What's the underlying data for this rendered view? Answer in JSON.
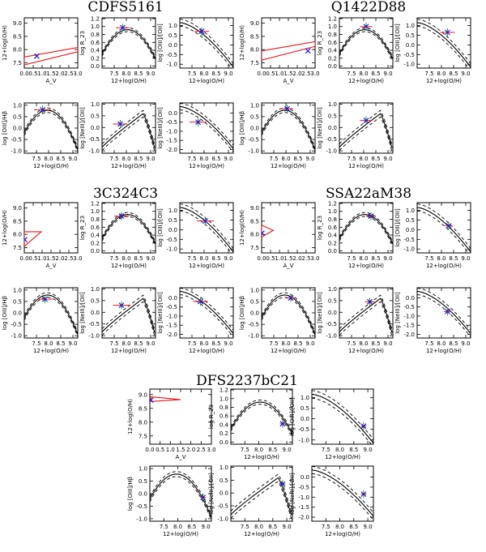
{
  "figure": {
    "background": "#ffffff"
  },
  "colors": {
    "model": "#000000",
    "contour": "#e8141c",
    "observed": "#1a1ad6",
    "error_green": "#2aa12a",
    "error_red": "#e8141c"
  },
  "axis_labels": {
    "x_oh": "12+log(O/H)",
    "x_av": "A_V",
    "y_oh": "12+log(O/H)",
    "y_r23": "log R_23",
    "y_o3o2": "log [OIII]/[OII]",
    "y_o3hb": "log [OIII]/Hβ",
    "y_ne3o2": "log [NeIII]/[OII]"
  },
  "chart_data": [
    {
      "type": "line",
      "galaxy": "CDFS5161",
      "panels": {
        "av": {
          "xlim": [
            0,
            3.0
          ],
          "ylim": [
            7.3,
            9.2
          ],
          "point": {
            "x": 0.7,
            "y": 7.75
          },
          "contour": [
            [
              0.0,
              7.72
            ],
            [
              3.0,
              8.08
            ],
            [
              3.0,
              7.92
            ],
            [
              0.0,
              7.42
            ]
          ]
        },
        "r23": {
          "xlim": [
            7.0,
            9.2
          ],
          "ylim": [
            -0.05,
            1.22
          ],
          "point": {
            "x": 7.85,
            "y": 0.97
          },
          "xerr": 0.28
        },
        "o3o2": {
          "xlim": [
            7.0,
            9.2
          ],
          "ylim": [
            -1.2,
            1.4
          ],
          "point": {
            "x": 7.9,
            "y": 0.7
          },
          "xerr": 0.3
        },
        "o3hb": {
          "xlim": [
            7.0,
            9.2
          ],
          "ylim": [
            -1.1,
            1.1
          ],
          "point": {
            "x": 7.75,
            "y": 0.8
          },
          "xerr": 0.35
        },
        "ne3o2": {
          "xlim": [
            7.0,
            9.2
          ],
          "ylim": [
            -1.1,
            1.05
          ],
          "point": {
            "x": 7.75,
            "y": 0.15
          },
          "xerr": 0.3
        },
        "ne3o2b": {
          "xlim": [
            7.0,
            9.2
          ],
          "ylim": [
            -2.2,
            0.55
          ],
          "point": {
            "x": 7.75,
            "y": -0.5
          },
          "xerr": 0.35
        }
      }
    },
    {
      "type": "line",
      "galaxy": "Q1422D88",
      "panels": {
        "av": {
          "xlim": [
            0,
            3.0
          ],
          "ylim": [
            7.3,
            9.2
          ],
          "point": {
            "x": 2.6,
            "y": 7.95
          },
          "contour": [
            [
              0.0,
              7.95
            ],
            [
              3.0,
              8.3
            ],
            [
              3.0,
              8.12
            ],
            [
              0.0,
              7.6
            ]
          ]
        },
        "r23": {
          "xlim": [
            7.0,
            9.2
          ],
          "ylim": [
            -0.05,
            1.22
          ],
          "point": {
            "x": 8.1,
            "y": 1.0
          },
          "xerr": 0.25
        },
        "o3o2": {
          "xlim": [
            7.0,
            9.2
          ],
          "ylim": [
            -1.2,
            1.4
          ],
          "point": {
            "x": 8.25,
            "y": 0.65
          },
          "xerr": 0.3
        },
        "o3hb": {
          "xlim": [
            7.0,
            9.2
          ],
          "ylim": [
            -1.1,
            1.1
          ],
          "point": {
            "x": 8.05,
            "y": 0.85
          },
          "xerr": 0.25
        },
        "ne3o2": {
          "xlim": [
            7.0,
            9.2
          ],
          "ylim": [
            -1.1,
            1.05
          ],
          "point": {
            "x": 8.1,
            "y": 0.3
          },
          "xerr": 0.25
        }
      }
    },
    {
      "type": "line",
      "galaxy": "3C324C3",
      "panels": {
        "av": {
          "xlim": [
            0,
            3.0
          ],
          "ylim": [
            7.3,
            9.2
          ],
          "point": {
            "x": 0.02,
            "y": 7.8
          },
          "contour": [
            [
              0.0,
              8.1
            ],
            [
              0.95,
              8.1
            ],
            [
              0.0,
              7.55
            ]
          ]
        },
        "r23": {
          "xlim": [
            7.0,
            9.2
          ],
          "ylim": [
            -0.05,
            1.22
          ],
          "point": {
            "x": 7.8,
            "y": 0.88
          },
          "xerr": 0.3
        },
        "o3o2": {
          "xlim": [
            7.0,
            9.2
          ],
          "ylim": [
            -1.2,
            1.4
          ],
          "point": {
            "x": 8.05,
            "y": 0.45
          },
          "xerr": 0.35
        },
        "o3hb": {
          "xlim": [
            7.0,
            9.2
          ],
          "ylim": [
            -1.1,
            1.1
          ],
          "point": {
            "x": 7.85,
            "y": 0.6
          },
          "xerr": 0.3
        },
        "ne3o2": {
          "xlim": [
            7.0,
            9.2
          ],
          "ylim": [
            -1.1,
            1.05
          ],
          "point": {
            "x": 7.8,
            "y": 0.3
          },
          "xerr": 0.35
        },
        "ne3o2b": {
          "xlim": [
            7.0,
            9.2
          ],
          "ylim": [
            -2.2,
            0.55
          ],
          "point": {
            "x": 7.85,
            "y": -0.2
          },
          "xerr": 0.3
        }
      }
    },
    {
      "type": "line",
      "galaxy": "SSA22aM38",
      "panels": {
        "av": {
          "xlim": [
            0,
            3.0
          ],
          "ylim": [
            7.3,
            9.2
          ],
          "point": {
            "x": 0.02,
            "y": 8.05
          },
          "contour": [
            [
              0.0,
              8.35
            ],
            [
              0.65,
              8.15
            ],
            [
              0.0,
              7.9
            ]
          ]
        },
        "r23": {
          "xlim": [
            7.0,
            9.2
          ],
          "ylim": [
            -0.05,
            1.22
          ],
          "point": {
            "x": 8.3,
            "y": 0.88
          },
          "xerr": 0.2
        },
        "o3o2": {
          "xlim": [
            7.0,
            9.2
          ],
          "ylim": [
            -1.2,
            1.4
          ],
          "point": {
            "x": 8.3,
            "y": 0.2
          },
          "xerr": 0.15
        },
        "o3hb": {
          "xlim": [
            7.0,
            9.2
          ],
          "ylim": [
            -1.1,
            1.1
          ],
          "point": {
            "x": 8.2,
            "y": 0.65
          },
          "xerr": 0.2
        },
        "ne3o2": {
          "xlim": [
            7.0,
            9.2
          ],
          "ylim": [
            -1.1,
            1.05
          ],
          "point": {
            "x": 8.25,
            "y": 0.45
          },
          "xerr": 0.2
        },
        "ne3o2b": {
          "xlim": [
            7.0,
            9.2
          ],
          "ylim": [
            -2.2,
            0.55
          ],
          "point": {
            "x": 8.25,
            "y": -0.75
          },
          "xerr": 0.15
        }
      }
    },
    {
      "type": "line",
      "galaxy": "DFS2237bC21",
      "panels": {
        "av": {
          "xlim": [
            0,
            3.0
          ],
          "ylim": [
            7.2,
            9.2
          ],
          "point": {
            "x": 0.05,
            "y": 8.8
          },
          "contour": [
            [
              0.05,
              8.92
            ],
            [
              1.5,
              8.82
            ],
            [
              0.05,
              8.75
            ]
          ]
        },
        "r23": {
          "xlim": [
            7.0,
            9.2
          ],
          "ylim": [
            -0.05,
            1.22
          ],
          "point": {
            "x": 8.85,
            "y": 0.42
          },
          "xerr": 0.1
        },
        "o3o2": {
          "xlim": [
            7.0,
            9.2
          ],
          "ylim": [
            -1.2,
            1.4
          ],
          "point": {
            "x": 8.85,
            "y": -0.35
          },
          "xerr": 0.1
        },
        "o3hb": {
          "xlim": [
            7.0,
            9.2
          ],
          "ylim": [
            -1.1,
            1.1
          ],
          "point": {
            "x": 8.9,
            "y": -0.15
          },
          "xerr": 0.1
        },
        "ne3o2": {
          "xlim": [
            7.0,
            9.2
          ],
          "ylim": [
            -1.1,
            1.05
          ],
          "point": {
            "x": 8.85,
            "y": 0.35
          },
          "xerr": 0.1
        },
        "ne3o2b": {
          "xlim": [
            7.0,
            9.2
          ],
          "ylim": [
            -2.2,
            0.55
          ],
          "point": {
            "x": 8.85,
            "y": -0.85
          },
          "xerr": 0.1
        }
      }
    }
  ]
}
